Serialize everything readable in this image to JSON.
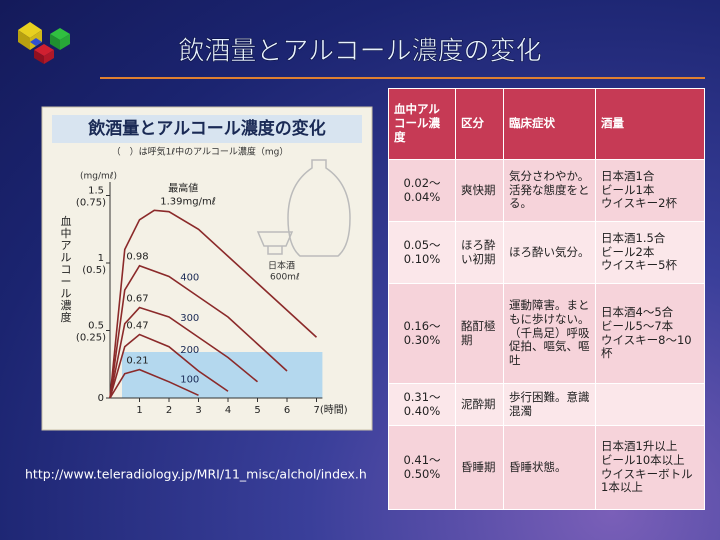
{
  "slide": {
    "title": "飲酒量とアルコール濃度の変化",
    "source": "http://www.teleradiology.jp/MRI/11_misc/alchol/index.h"
  },
  "chart_data": {
    "type": "line",
    "title": "飲酒量とアルコール濃度の変化",
    "subtitle": "（　）は呼気1ℓ中のアルコール濃度（mg）",
    "ylabel": "血中アルコール濃度",
    "yunit": "(mg/mℓ)",
    "xlim": [
      0,
      7.2
    ],
    "ylim": [
      0,
      1.6
    ],
    "xticks": [
      1,
      2,
      3,
      4,
      5,
      6,
      {
        "value": 7,
        "label": "7(時間)"
      }
    ],
    "yticks": [
      0,
      0.5,
      1,
      1.5
    ],
    "breath_labels": [
      "(0.25)",
      "(0.5)",
      "(0.75)"
    ],
    "color": "#8b2a2a",
    "series": [
      {
        "peak_label": "1.39mg/mℓ",
        "x": [
          0,
          0.5,
          1,
          1.5,
          2,
          3,
          4,
          5,
          6,
          7
        ],
        "values": [
          0,
          1.1,
          1.32,
          1.39,
          1.38,
          1.25,
          1.05,
          0.85,
          0.65,
          0.45
        ]
      },
      {
        "name": "400",
        "peak_label": "0.98",
        "x": [
          0,
          0.5,
          1,
          2,
          3,
          4,
          5,
          6
        ],
        "values": [
          0,
          0.8,
          0.98,
          0.9,
          0.75,
          0.6,
          0.4,
          0.2
        ]
      },
      {
        "name": "300",
        "peak_label": "0.67",
        "x": [
          0,
          0.5,
          1,
          2,
          3,
          4,
          5
        ],
        "values": [
          0,
          0.55,
          0.67,
          0.6,
          0.45,
          0.3,
          0.12
        ]
      },
      {
        "name": "200",
        "peak_label": "0.47",
        "x": [
          0,
          0.5,
          1,
          2,
          3,
          4
        ],
        "values": [
          0,
          0.38,
          0.47,
          0.38,
          0.2,
          0.05
        ]
      },
      {
        "name": "100",
        "peak_label": "0.21",
        "x": [
          0,
          0.5,
          1,
          2,
          3
        ],
        "values": [
          0,
          0.18,
          0.21,
          0.12,
          0.02
        ]
      }
    ],
    "annotations": {
      "peak": "最高値",
      "drink": "日本酒",
      "amount": "600mℓ"
    }
  },
  "table": {
    "headers": [
      "血中アルコール濃度",
      "区分",
      "臨床症状",
      "酒量"
    ],
    "rows": [
      [
        "0.02〜0.04%",
        "爽快期",
        "気分さわやか。活発な態度をとる。",
        [
          "日本酒1合",
          "ビール1本",
          "ウイスキー2杯"
        ]
      ],
      [
        "0.05〜0.10%",
        "ほろ酔い初期",
        "ほろ酔い気分。",
        [
          "日本酒1.5合",
          "ビール2本",
          "ウイスキー5杯"
        ]
      ],
      [
        "0.16〜0.30%",
        "酩酊極期",
        "運動障害。まともに歩けない。（千鳥足）呼吸促拍、嘔気、嘔吐",
        [
          "日本酒4〜5合",
          "ビール5〜7本",
          "ウイスキー8〜10杯"
        ]
      ],
      [
        "0.31〜0.40%",
        "泥酔期",
        "歩行困難。意識混濁",
        []
      ],
      [
        "0.41〜0.50%",
        "昏睡期",
        "昏睡状態。",
        [
          "日本酒1升以上",
          "ビール10本以上",
          "ウイスキーボトル1本以上"
        ]
      ]
    ]
  }
}
